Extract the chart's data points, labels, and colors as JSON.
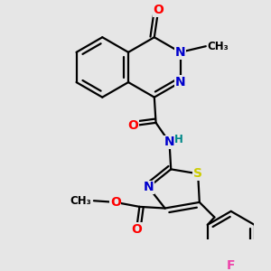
{
  "bg_color": "#e6e6e6",
  "bond_color": "#000000",
  "bond_lw": 1.6,
  "atom_colors": {
    "O": "#ff0000",
    "N": "#0000cc",
    "S": "#cccc00",
    "F": "#ee44aa",
    "H": "#008888"
  },
  "font_size_atom": 10,
  "font_size_small": 8.5
}
